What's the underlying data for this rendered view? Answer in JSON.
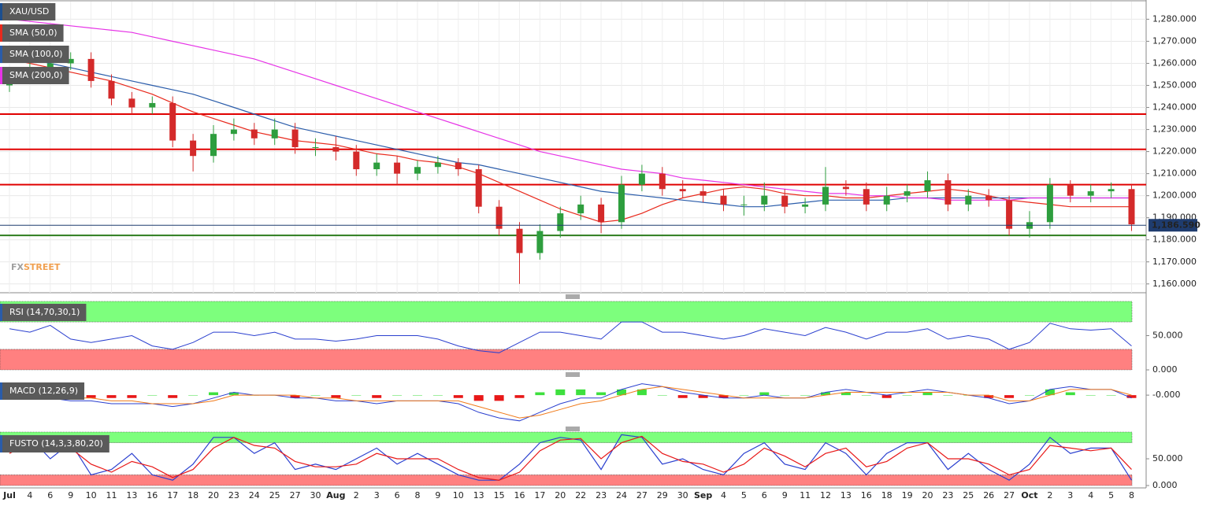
{
  "chart_data": [
    {
      "type": "candlestick",
      "title": "XAU/USD",
      "categories": [
        "Jul",
        "4",
        "6",
        "9",
        "10",
        "11",
        "13",
        "16",
        "17",
        "18",
        "20",
        "23",
        "24",
        "25",
        "27",
        "30",
        "Aug",
        "2",
        "3",
        "6",
        "8",
        "9",
        "10",
        "13",
        "15",
        "16",
        "17",
        "20",
        "22",
        "23",
        "24",
        "27",
        "29",
        "30",
        "Sep",
        "4",
        "5",
        "6",
        "9",
        "11",
        "12",
        "13",
        "16",
        "18",
        "19",
        "20",
        "23",
        "25",
        "26",
        "27",
        "Oct",
        "2",
        "3",
        "4",
        "5",
        "8"
      ],
      "open": [
        1250,
        1255,
        1258,
        1260,
        1262,
        1252,
        1244,
        1240,
        1242,
        1225,
        1218,
        1228,
        1230,
        1226,
        1230,
        1222,
        1222,
        1220,
        1212,
        1215,
        1210,
        1213,
        1215,
        1212,
        1195,
        1185,
        1174,
        1184,
        1192,
        1196,
        1188,
        1205,
        1210,
        1203,
        1202,
        1200,
        1196,
        1196,
        1200,
        1195,
        1196,
        1204,
        1203,
        1196,
        1200,
        1202,
        1207,
        1196,
        1200,
        1198,
        1185,
        1188,
        1205,
        1200,
        1202,
        1203
      ],
      "high": [
        1258,
        1261,
        1263,
        1265,
        1265,
        1255,
        1247,
        1245,
        1245,
        1228,
        1232,
        1235,
        1233,
        1235,
        1233,
        1226,
        1227,
        1223,
        1219,
        1218,
        1216,
        1218,
        1217,
        1214,
        1198,
        1188,
        1187,
        1195,
        1200,
        1199,
        1209,
        1214,
        1213,
        1207,
        1205,
        1203,
        1200,
        1206,
        1203,
        1199,
        1213,
        1207,
        1206,
        1204,
        1205,
        1211,
        1210,
        1203,
        1203,
        1200,
        1193,
        1208,
        1207,
        1205,
        1206,
        1205
      ],
      "low": [
        1247,
        1252,
        1255,
        1257,
        1249,
        1241,
        1237,
        1237,
        1222,
        1211,
        1215,
        1225,
        1223,
        1223,
        1219,
        1218,
        1216,
        1209,
        1209,
        1205,
        1207,
        1210,
        1209,
        1192,
        1182,
        1160,
        1171,
        1181,
        1189,
        1183,
        1185,
        1202,
        1200,
        1199,
        1197,
        1193,
        1191,
        1193,
        1192,
        1192,
        1193,
        1200,
        1193,
        1193,
        1197,
        1199,
        1193,
        1193,
        1195,
        1182,
        1181,
        1185,
        1197,
        1197,
        1199,
        1184
      ],
      "close": [
        1255,
        1258,
        1260,
        1262,
        1252,
        1244,
        1240,
        1242,
        1225,
        1218,
        1228,
        1230,
        1226,
        1230,
        1222,
        1222,
        1220,
        1212,
        1215,
        1210,
        1213,
        1215,
        1212,
        1195,
        1185,
        1174,
        1184,
        1192,
        1196,
        1188,
        1205,
        1210,
        1203,
        1202,
        1200,
        1196,
        1196,
        1200,
        1195,
        1196,
        1204,
        1203,
        1196,
        1200,
        1202,
        1207,
        1196,
        1200,
        1198,
        1185,
        1188,
        1205,
        1200,
        1202,
        1203,
        1187
      ],
      "up_color": "#2e9e3e",
      "down_color": "#d42a2a",
      "title_color": "#1c4f8f",
      "overlays": [
        {
          "name": "SMA (50,0)",
          "color": "#e8291c",
          "values": [
            1262,
            1260,
            1258,
            1256,
            1254,
            1252,
            1249,
            1246,
            1242,
            1238,
            1235,
            1232,
            1229,
            1227,
            1225,
            1224,
            1223,
            1221,
            1219,
            1218,
            1216,
            1215,
            1213,
            1210,
            1206,
            1202,
            1198,
            1194,
            1191,
            1188,
            1189,
            1192,
            1196,
            1199,
            1201,
            1203,
            1204,
            1203,
            1201,
            1200,
            1200,
            1199,
            1199,
            1200,
            1201,
            1202,
            1203,
            1202,
            1200,
            1198,
            1197,
            1196,
            1195,
            1195,
            1195,
            1195
          ]
        },
        {
          "name": "SMA (100,0)",
          "color": "#2a5caa",
          "values": [
            1264,
            1262,
            1260,
            1258,
            1256,
            1254,
            1252,
            1250,
            1248,
            1246,
            1243,
            1240,
            1237,
            1234,
            1231,
            1229,
            1227,
            1225,
            1223,
            1221,
            1219,
            1217,
            1215,
            1214,
            1212,
            1210,
            1208,
            1206,
            1204,
            1202,
            1201,
            1200,
            1199,
            1198,
            1197,
            1196,
            1195,
            1195,
            1196,
            1197,
            1198,
            1198,
            1198,
            1198,
            1199,
            1199,
            1199,
            1199,
            1199,
            1199,
            1199,
            1199,
            1199,
            1199,
            1199,
            1199
          ]
        },
        {
          "name": "SMA (200,0)",
          "color": "#e633e6",
          "values": [
            1280,
            1279,
            1278,
            1277,
            1276,
            1275,
            1274,
            1272,
            1270,
            1268,
            1266,
            1264,
            1262,
            1259,
            1256,
            1253,
            1250,
            1247,
            1244,
            1241,
            1238,
            1235,
            1232,
            1229,
            1226,
            1223,
            1220,
            1218,
            1216,
            1214,
            1212,
            1211,
            1210,
            1208,
            1207,
            1206,
            1205,
            1204,
            1203,
            1202,
            1201,
            1201,
            1200,
            1200,
            1199,
            1199,
            1198,
            1198,
            1198,
            1198,
            1199,
            1199,
            1199,
            1199,
            1199,
            1199
          ]
        }
      ],
      "levels": [
        {
          "value": 1237,
          "color": "#e00000"
        },
        {
          "value": 1221,
          "color": "#e00000"
        },
        {
          "value": 1205,
          "color": "#e00000"
        },
        {
          "value": 1182,
          "color": "#2e7d1e"
        }
      ],
      "last_price": {
        "value": 1186.59,
        "label": "1,186.590",
        "color": "#1f3c6e"
      },
      "watermark": {
        "prefix": "FX",
        "suffix": "STREET"
      },
      "ylim": [
        1156,
        1288
      ],
      "yticks": [
        {
          "value": 1160,
          "label": "1,160.000"
        },
        {
          "value": 1170,
          "label": "1,170.000"
        },
        {
          "value": 1180,
          "label": "1,180.000"
        },
        {
          "value": 1190,
          "label": "1,190.000"
        },
        {
          "value": 1200,
          "label": "1,200.000"
        },
        {
          "value": 1210,
          "label": "1,210.000"
        },
        {
          "value": 1220,
          "label": "1,220.000"
        },
        {
          "value": 1230,
          "label": "1,230.000"
        },
        {
          "value": 1240,
          "label": "1,240.000"
        },
        {
          "value": 1250,
          "label": "1,250.000"
        },
        {
          "value": 1260,
          "label": "1,260.000"
        },
        {
          "value": 1270,
          "label": "1,270.000"
        },
        {
          "value": 1280,
          "label": "1,280.000"
        }
      ],
      "grid": true
    },
    {
      "type": "rsi",
      "title": "RSI (14,70,30,1)",
      "title_color": "#2a5caa",
      "bands": [
        {
          "from": 70,
          "to": 100,
          "color": "#7dff7d"
        },
        {
          "from": 0,
          "to": 30,
          "color": "#ff8080"
        }
      ],
      "series": [
        {
          "color": "#2a3fcf",
          "values": [
            60,
            55,
            65,
            45,
            40,
            45,
            50,
            35,
            30,
            40,
            55,
            55,
            50,
            55,
            45,
            45,
            42,
            45,
            50,
            50,
            50,
            45,
            35,
            28,
            25,
            40,
            55,
            55,
            50,
            45,
            70,
            70,
            55,
            55,
            50,
            45,
            50,
            60,
            55,
            50,
            62,
            55,
            45,
            55,
            55,
            60,
            45,
            50,
            45,
            30,
            40,
            68,
            60,
            58,
            60,
            35
          ]
        }
      ],
      "ylim": [
        0,
        100
      ],
      "yticks": [
        {
          "value": 0,
          "label": "0.000"
        },
        {
          "value": 50,
          "label": "50.000"
        }
      ]
    },
    {
      "type": "macd",
      "title": "MACD (12,26,9)",
      "title_color": "#2a5caa",
      "up_color": "#3ee03e",
      "down_color": "#e81818",
      "histogram": [
        0,
        -1,
        -1,
        -1,
        -1,
        -1,
        -1,
        0,
        -1,
        0,
        1,
        1,
        0,
        0,
        -1,
        0,
        -1,
        0,
        -1,
        0,
        0,
        0,
        -1,
        -2,
        -2,
        -1,
        1,
        2,
        2,
        1,
        2,
        2,
        0,
        -1,
        -1,
        -1,
        0,
        1,
        0,
        0,
        1,
        1,
        0,
        -1,
        0,
        1,
        0,
        0,
        -1,
        -1,
        0,
        2,
        1,
        0,
        0,
        -1
      ],
      "series": [
        {
          "color": "#2a3fcf",
          "values": [
            1,
            0,
            -1,
            -2,
            -2,
            -3,
            -3,
            -3,
            -4,
            -3,
            -1,
            1,
            0,
            0,
            -1,
            -1,
            -2,
            -2,
            -3,
            -2,
            -2,
            -2,
            -3,
            -6,
            -8,
            -9,
            -6,
            -3,
            -1,
            -1,
            2,
            4,
            3,
            1,
            0,
            -1,
            -1,
            0,
            -1,
            -1,
            1,
            2,
            1,
            0,
            1,
            2,
            1,
            0,
            -1,
            -3,
            -2,
            2,
            3,
            2,
            2,
            -1
          ]
        },
        {
          "color": "#f07a1a",
          "values": [
            1,
            1,
            0,
            -1,
            -1,
            -2,
            -2,
            -3,
            -3,
            -3,
            -2,
            0,
            0,
            0,
            0,
            -1,
            -1,
            -2,
            -2,
            -2,
            -2,
            -2,
            -2,
            -4,
            -6,
            -8,
            -7,
            -5,
            -3,
            -2,
            0,
            2,
            3,
            2,
            1,
            0,
            -1,
            -1,
            -1,
            -1,
            0,
            1,
            1,
            1,
            1,
            1,
            1,
            0,
            0,
            -2,
            -2,
            0,
            2,
            2,
            2,
            0
          ]
        }
      ],
      "ylim": [
        -11,
        5
      ],
      "yticks": [
        {
          "value": 0,
          "label": "-0.000"
        }
      ]
    },
    {
      "type": "stochastic",
      "title": "FUSTO (14,3,3,80,20)",
      "title_color": "#2a5caa",
      "bands": [
        {
          "from": 80,
          "to": 100,
          "color": "#7dff7d"
        },
        {
          "from": 0,
          "to": 20,
          "color": "#ff8080"
        }
      ],
      "series": [
        {
          "color": "#2a3fcf",
          "values": [
            70,
            90,
            50,
            80,
            20,
            30,
            60,
            20,
            10,
            40,
            90,
            90,
            60,
            80,
            30,
            40,
            30,
            50,
            70,
            40,
            60,
            40,
            20,
            10,
            10,
            40,
            80,
            90,
            85,
            30,
            95,
            90,
            40,
            50,
            30,
            20,
            60,
            80,
            40,
            30,
            80,
            60,
            20,
            60,
            80,
            80,
            30,
            60,
            30,
            10,
            40,
            90,
            60,
            70,
            70,
            10
          ]
        },
        {
          "color": "#e81818",
          "values": [
            60,
            80,
            70,
            70,
            40,
            25,
            45,
            35,
            15,
            30,
            70,
            90,
            75,
            70,
            45,
            35,
            35,
            40,
            60,
            50,
            50,
            50,
            30,
            15,
            10,
            25,
            65,
            85,
            88,
            50,
            80,
            92,
            60,
            45,
            40,
            25,
            40,
            70,
            55,
            35,
            60,
            70,
            35,
            45,
            70,
            80,
            50,
            50,
            40,
            20,
            30,
            75,
            70,
            65,
            70,
            30
          ]
        }
      ],
      "ylim": [
        0,
        100
      ],
      "yticks": [
        {
          "value": 0,
          "label": "0.000"
        },
        {
          "value": 50,
          "label": "50.000"
        }
      ]
    }
  ]
}
